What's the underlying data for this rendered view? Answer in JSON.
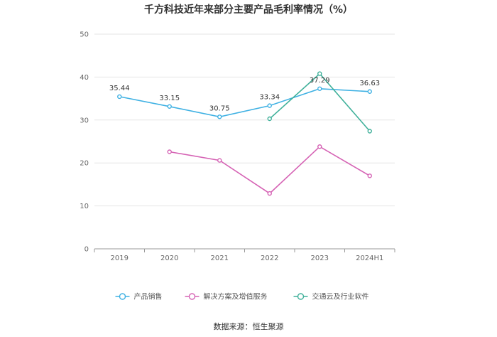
{
  "title": "千方科技近年来部分主要产品毛利率情况（%）",
  "source": "数据来源：恒生聚源",
  "chart_data": {
    "type": "line",
    "title": "千方科技近年来部分主要产品毛利率情况（%）",
    "categories": [
      "2019",
      "2020",
      "2021",
      "2022",
      "2023",
      "2024H1"
    ],
    "ylim": [
      0,
      50
    ],
    "yticks": [
      0,
      10,
      20,
      30,
      40,
      50
    ],
    "grid": true,
    "legend_position": "bottom",
    "series": [
      {
        "name": "产品销售",
        "color": "#3fb1e3",
        "values": [
          35.44,
          33.15,
          30.75,
          33.34,
          37.29,
          36.63
        ],
        "show_labels": true
      },
      {
        "name": "解决方案及增值服务",
        "color": "#d562b4",
        "values": [
          null,
          22.6,
          20.6,
          12.9,
          23.8,
          17.0
        ],
        "show_labels": false
      },
      {
        "name": "交通云及行业软件",
        "color": "#3fb09a",
        "values": [
          null,
          null,
          null,
          30.3,
          40.8,
          27.4
        ],
        "show_labels": false
      }
    ]
  }
}
